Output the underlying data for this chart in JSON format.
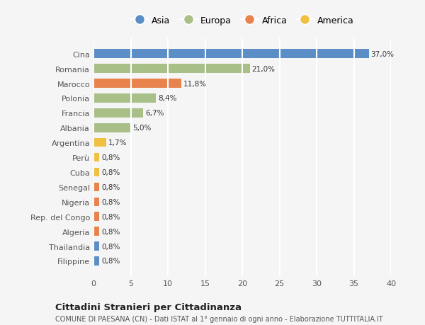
{
  "categories": [
    "Filippine",
    "Thailandia",
    "Algeria",
    "Rep. del Congo",
    "Nigeria",
    "Senegal",
    "Cuba",
    "Perù",
    "Argentina",
    "Albania",
    "Francia",
    "Polonia",
    "Marocco",
    "Romania",
    "Cina"
  ],
  "values": [
    0.8,
    0.8,
    0.8,
    0.8,
    0.8,
    0.8,
    0.8,
    0.8,
    1.7,
    5.0,
    6.7,
    8.4,
    11.8,
    21.0,
    37.0
  ],
  "labels": [
    "0,8%",
    "0,8%",
    "0,8%",
    "0,8%",
    "0,8%",
    "0,8%",
    "0,8%",
    "0,8%",
    "1,7%",
    "5,0%",
    "6,7%",
    "8,4%",
    "11,8%",
    "21,0%",
    "37,0%"
  ],
  "colors": [
    "#5b8ec7",
    "#5b8ec7",
    "#e8834e",
    "#e8834e",
    "#e8834e",
    "#e8834e",
    "#f0c040",
    "#f0c040",
    "#f0c040",
    "#a8bf88",
    "#a8bf88",
    "#a8bf88",
    "#e8834e",
    "#a8bf88",
    "#5b8ec7"
  ],
  "legend": [
    {
      "label": "Asia",
      "color": "#5b8ec7"
    },
    {
      "label": "Europa",
      "color": "#a8bf88"
    },
    {
      "label": "Africa",
      "color": "#e8834e"
    },
    {
      "label": "America",
      "color": "#f0c040"
    }
  ],
  "xlim": [
    0,
    40
  ],
  "xticks": [
    0,
    5,
    10,
    15,
    20,
    25,
    30,
    35,
    40
  ],
  "title": "Cittadini Stranieri per Cittadinanza",
  "subtitle": "COMUNE DI PAESANA (CN) - Dati ISTAT al 1° gennaio di ogni anno - Elaborazione TUTTITALIA.IT",
  "background_color": "#f5f5f5",
  "bar_height": 0.6,
  "grid_color": "#ffffff",
  "tick_label_color": "#555555",
  "value_label_color": "#333333"
}
